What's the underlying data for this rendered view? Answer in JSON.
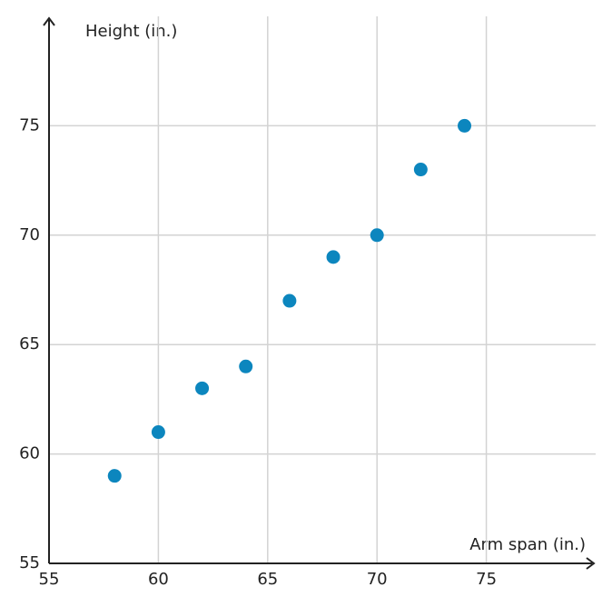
{
  "chart_data": {
    "type": "scatter",
    "x_label": "Arm span (in.)",
    "y_label": "Height (in.)",
    "x": [
      58,
      60,
      62,
      64,
      66,
      68,
      70,
      72,
      74
    ],
    "values": [
      59,
      61,
      63,
      64,
      67,
      69,
      70,
      73,
      75
    ],
    "color": "#0c86be",
    "xlim": [
      55,
      80
    ],
    "ylim": [
      55,
      80
    ],
    "xticks": [
      55,
      60,
      65,
      70,
      75
    ],
    "yticks": [
      55,
      60,
      65,
      70,
      75
    ],
    "grid": true
  }
}
